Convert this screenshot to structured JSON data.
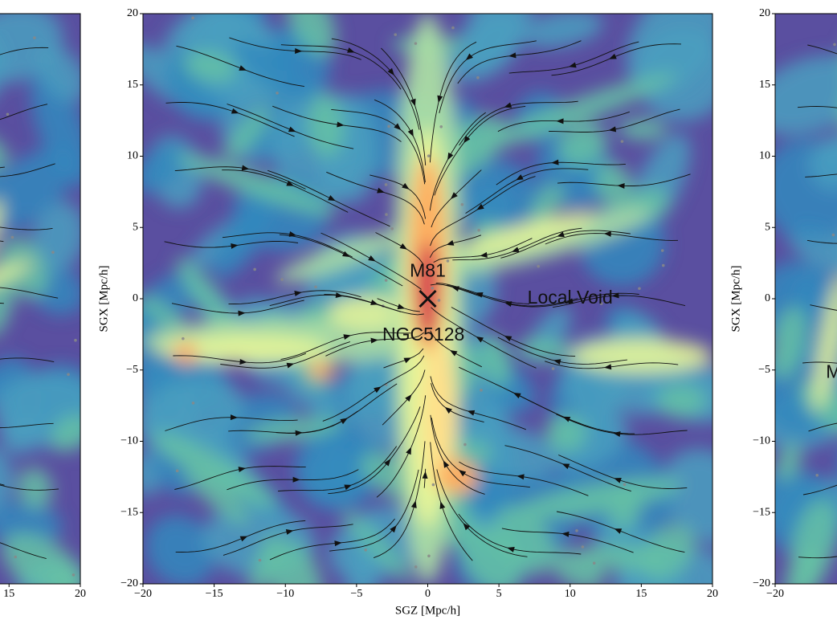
{
  "chart_data": [
    {
      "type": "heatmap",
      "xlim": [
        -20,
        20
      ],
      "ylim": [
        -20,
        20
      ],
      "xticks": [
        15,
        20
      ]
    },
    {
      "type": "heatmap",
      "xlabel": "SGZ [Mpc/h]",
      "ylabel": "SGX [Mpc/h]",
      "xlim": [
        -20,
        20
      ],
      "ylim": [
        -20,
        20
      ],
      "xticks": [
        {
          "value": -20,
          "label": "−20"
        },
        {
          "value": -15,
          "label": "−15"
        },
        {
          "value": -10,
          "label": "−10"
        },
        {
          "value": -5,
          "label": "−5"
        },
        0,
        5,
        10,
        15,
        20
      ],
      "yticks": [
        {
          "value": -20,
          "label": "−20"
        },
        {
          "value": -15,
          "label": "−15"
        },
        {
          "value": -10,
          "label": "−10"
        },
        {
          "value": -5,
          "label": "−5"
        },
        0,
        5,
        10,
        15,
        20
      ],
      "annotations": [
        {
          "text": "M81",
          "x": 0,
          "y": 1.9
        },
        {
          "text": "NGC5128",
          "x": -0.3,
          "y": -2.6
        },
        {
          "text": "Local Void",
          "x": 10,
          "y": 0
        }
      ],
      "markers": [
        {
          "x": 0,
          "y": 0
        }
      ]
    },
    {
      "type": "heatmap",
      "ylabel": "SGX [Mpc/h]",
      "xlim": [
        -20,
        20
      ],
      "ylim": [
        -20,
        20
      ],
      "xticks": [
        {
          "value": -20,
          "label": "−20"
        }
      ],
      "yticks": [
        {
          "value": -20,
          "label": "−20"
        },
        {
          "value": -15,
          "label": "−15"
        },
        {
          "value": -10,
          "label": "−10"
        },
        {
          "value": -5,
          "label": "−5"
        },
        0,
        5,
        10,
        15,
        20
      ],
      "annotations": [
        {
          "text": "M",
          "x": -15.9,
          "y": -5.2
        }
      ]
    }
  ]
}
